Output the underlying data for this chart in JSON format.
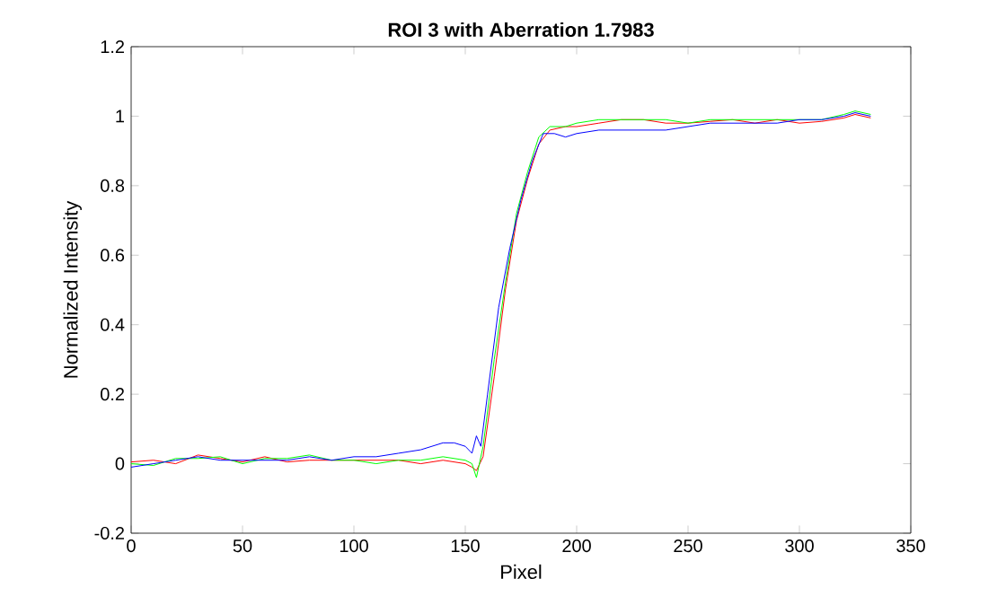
{
  "chart_data": {
    "type": "line",
    "title": "ROI 3 with Aberration 1.7983",
    "xlabel": "Pixel",
    "ylabel": "Normalized Intensity",
    "xlim": [
      0,
      350
    ],
    "ylim": [
      -0.2,
      1.2
    ],
    "xticks": [
      0,
      50,
      100,
      150,
      200,
      250,
      300,
      350
    ],
    "yticks": [
      -0.2,
      0,
      0.2,
      0.4,
      0.6,
      0.8,
      1,
      1.2
    ],
    "grid": false,
    "marker": "none",
    "line_style": "solid",
    "series": [
      {
        "color": "#ff0000",
        "x": [
          0,
          10,
          20,
          30,
          40,
          50,
          60,
          70,
          80,
          90,
          100,
          110,
          120,
          130,
          140,
          150,
          153,
          155,
          158,
          163,
          168,
          173,
          178,
          183,
          188,
          195,
          200,
          210,
          220,
          230,
          240,
          250,
          260,
          270,
          280,
          290,
          300,
          310,
          320,
          325,
          332
        ],
        "values": [
          0.005,
          0.01,
          0,
          0.025,
          0.015,
          0.005,
          0.02,
          0.005,
          0.01,
          0.01,
          0.01,
          0.01,
          0.01,
          0,
          0.01,
          0,
          -0.01,
          -0.02,
          0.02,
          0.25,
          0.5,
          0.7,
          0.82,
          0.92,
          0.96,
          0.97,
          0.97,
          0.98,
          0.99,
          0.99,
          0.98,
          0.98,
          0.985,
          0.99,
          0.98,
          0.99,
          0.98,
          0.985,
          0.995,
          1.005,
          0.995
        ]
      },
      {
        "color": "#00ff00",
        "x": [
          0,
          10,
          20,
          30,
          40,
          50,
          60,
          70,
          80,
          90,
          100,
          110,
          120,
          130,
          140,
          150,
          153,
          155,
          158,
          163,
          168,
          173,
          178,
          183,
          188,
          195,
          200,
          210,
          220,
          230,
          240,
          250,
          260,
          270,
          280,
          290,
          300,
          310,
          320,
          325,
          332
        ],
        "values": [
          0,
          -0.005,
          0.015,
          0.015,
          0.02,
          0,
          0.015,
          0.015,
          0.025,
          0.01,
          0.01,
          0,
          0.01,
          0.01,
          0.02,
          0.01,
          0,
          -0.04,
          0.05,
          0.3,
          0.52,
          0.72,
          0.84,
          0.94,
          0.97,
          0.97,
          0.98,
          0.99,
          0.99,
          0.99,
          0.99,
          0.98,
          0.99,
          0.99,
          0.99,
          0.99,
          0.99,
          0.99,
          1.005,
          1.015,
          1.005
        ]
      },
      {
        "color": "#0000ff",
        "x": [
          0,
          10,
          20,
          30,
          40,
          50,
          60,
          70,
          80,
          90,
          100,
          110,
          120,
          130,
          140,
          145,
          150,
          153,
          155,
          157,
          160,
          165,
          170,
          175,
          180,
          185,
          190,
          195,
          200,
          210,
          220,
          230,
          240,
          250,
          260,
          270,
          280,
          290,
          300,
          310,
          320,
          325,
          332
        ],
        "values": [
          -0.01,
          0,
          0.01,
          0.02,
          0.01,
          0.01,
          0.01,
          0.01,
          0.02,
          0.01,
          0.02,
          0.02,
          0.03,
          0.04,
          0.06,
          0.06,
          0.05,
          0.03,
          0.08,
          0.05,
          0.2,
          0.45,
          0.62,
          0.76,
          0.87,
          0.95,
          0.95,
          0.94,
          0.95,
          0.96,
          0.96,
          0.96,
          0.96,
          0.97,
          0.98,
          0.98,
          0.98,
          0.98,
          0.99,
          0.99,
          1,
          1.01,
          1
        ]
      }
    ]
  }
}
